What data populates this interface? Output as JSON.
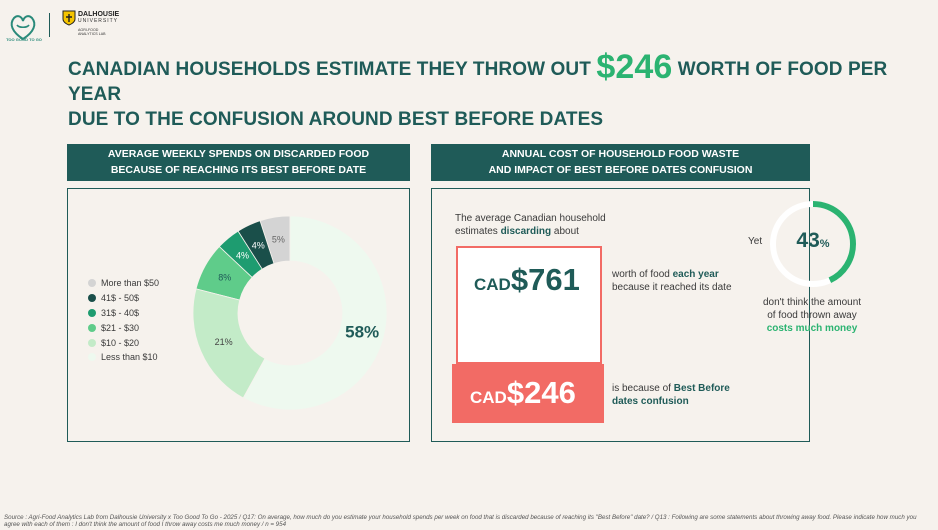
{
  "logos": {
    "tgtg_text": "TOO GOOD TO GO",
    "dal_name": "DALHOUSIE",
    "dal_uni": "UNIVERSITY",
    "dal_lab": "AGRI-FOOD ANALYTICS LAB"
  },
  "headline": {
    "part1": "CANADIAN HOUSEHOLDS ESTIMATE THEY THROW OUT ",
    "amount": "$246",
    "part2": " WORTH OF FOOD PER YEAR",
    "line2": "DUE TO THE CONFUSION AROUND BEST BEFORE DATES"
  },
  "left_panel": {
    "title_line1": "AVERAGE WEEKLY SPENDS ON DISCARDED FOOD",
    "title_line2": "BECAUSE OF REACHING ITS BEST BEFORE DATE"
  },
  "right_panel": {
    "title_line1": "ANNUAL COST OF HOUSEHOLD FOOD WASTE",
    "title_line2": "AND IMPACT OF BEST BEFORE DATES CONFUSION",
    "intro_line1": "The average Canadian household",
    "intro_pre": "estimates ",
    "intro_bold": "discarding",
    "intro_post": " about",
    "cur1": "CAD",
    "num1": "$761",
    "desc1_pre": "worth of food ",
    "desc1_bold": "each year",
    "desc1_line2": "because it reached its date",
    "cur2": "CAD",
    "num2": "$246",
    "desc2_pre": "is because of ",
    "desc2_bold": "Best Before",
    "desc2_line2": "dates confusion",
    "yet": "Yet",
    "ring_value": 43,
    "ring_num": "43",
    "ring_pct": "%",
    "ring_line1": "don't think the amount",
    "ring_line2": "of food thrown away",
    "ring_line3": "costs much money"
  },
  "colors": {
    "dark_teal": "#1f5b58",
    "accent_green": "#2bb371",
    "coral": "#f26b65"
  },
  "chart_data": {
    "type": "pie",
    "title": "AVERAGE WEEKLY SPENDS ON DISCARDED FOOD BECAUSE OF REACHING ITS BEST BEFORE DATE",
    "legend_position": "left",
    "categories": [
      "More than $50",
      "41$ - 50$",
      "31$ - 40$",
      "$21 - $30",
      "$10 - $20",
      "Less than $10"
    ],
    "values": [
      5,
      4,
      4,
      8,
      21,
      58
    ],
    "labels": [
      "5%",
      "4%",
      "4%",
      "8%",
      "21%",
      "58%"
    ],
    "colors": [
      "#d4d4d4",
      "#1a4f4a",
      "#1e9c70",
      "#5fcc8a",
      "#c3ebc8",
      "#eef9ef"
    ]
  },
  "source": "Source : Agri-Food Analytics Lab from Dalhousie University x Too Good To Go - 2025 / Q17: On average, how much do you estimate your household spends per week on food that is discarded because of reaching its \"Best Before\" date? / Q13 : Following are some statements about throwing away food. Please indicate how much you agree with each of them : I don't think the amount of food I throw away costs me much money / n = 954"
}
